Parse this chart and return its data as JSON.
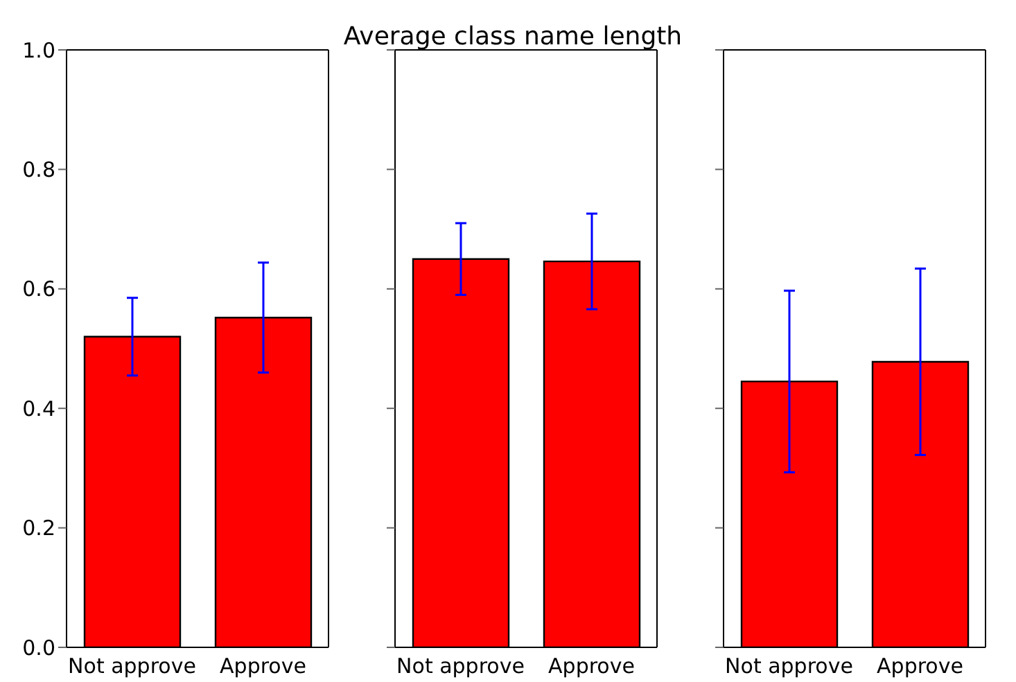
{
  "chart_data": [
    {
      "type": "bar",
      "categories": [
        "Not approve",
        "Approve"
      ],
      "values": [
        0.52,
        0.552
      ],
      "errors": [
        0.065,
        0.092
      ],
      "color": "#ff0000",
      "ylim": [
        0,
        1
      ],
      "yticks": [
        {
          "value": 0,
          "label": "0.0"
        },
        {
          "value": 0.2,
          "label": "0.2"
        },
        {
          "value": 0.4,
          "label": "0.4"
        },
        {
          "value": 0.6,
          "label": "0.6"
        },
        {
          "value": 0.8,
          "label": "0.8"
        },
        {
          "value": 1,
          "label": "1.0"
        }
      ],
      "grid": false
    },
    {
      "type": "bar",
      "title": "Average class name length",
      "categories": [
        "Not approve",
        "Approve"
      ],
      "values": [
        0.65,
        0.646
      ],
      "errors": [
        0.06,
        0.08
      ],
      "color": "#ff0000",
      "ylim": [
        0,
        1
      ],
      "yticks": [
        0,
        0.2,
        0.4,
        0.6,
        0.8,
        1
      ],
      "tick_labels": "x",
      "grid": false
    },
    {
      "type": "bar",
      "categories": [
        "Not approve",
        "Approve"
      ],
      "values": [
        0.445,
        0.478
      ],
      "errors": [
        0.152,
        0.156
      ],
      "color": "#ff0000",
      "ylim": [
        0,
        1
      ],
      "yticks": [
        0,
        0.2,
        0.4,
        0.6,
        0.8,
        1
      ],
      "tick_labels": "x",
      "grid": false
    }
  ]
}
